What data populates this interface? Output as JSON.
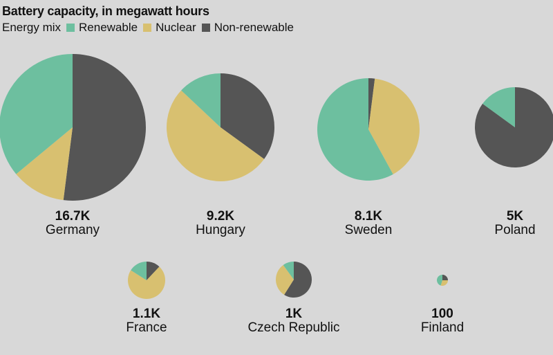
{
  "title": "Battery capacity, in megawatt hours",
  "legend": {
    "label": "Energy mix",
    "items": [
      {
        "name": "Renewable",
        "color": "#6dbf9f"
      },
      {
        "name": "Nuclear",
        "color": "#d8c070"
      },
      {
        "name": "Non-renewable",
        "color": "#555555"
      }
    ]
  },
  "chart_data": {
    "type": "pie",
    "title": "Battery capacity, in megawatt hours",
    "series_names": [
      "Renewable",
      "Nuclear",
      "Non-renewable"
    ],
    "colors": [
      "#6dbf9f",
      "#d8c070",
      "#555555"
    ],
    "pies": [
      {
        "country": "Germany",
        "label": "16.7K",
        "capacity": 16700,
        "mix": [
          0.36,
          0.12,
          0.52
        ]
      },
      {
        "country": "Hungary",
        "label": "9.2K",
        "capacity": 9200,
        "mix": [
          0.13,
          0.52,
          0.35
        ]
      },
      {
        "country": "Sweden",
        "label": "8.1K",
        "capacity": 8100,
        "mix": [
          0.58,
          0.4,
          0.02
        ]
      },
      {
        "country": "Poland",
        "label": "5K",
        "capacity": 5000,
        "mix": [
          0.15,
          0.0,
          0.85
        ]
      },
      {
        "country": "France",
        "label": "1.1K",
        "capacity": 1100,
        "mix": [
          0.16,
          0.72,
          0.12
        ]
      },
      {
        "country": "Czech Republic",
        "label": "1K",
        "capacity": 1000,
        "mix": [
          0.1,
          0.31,
          0.59
        ]
      },
      {
        "country": "Finland",
        "label": "100",
        "capacity": 100,
        "mix": [
          0.45,
          0.3,
          0.25
        ]
      }
    ]
  }
}
